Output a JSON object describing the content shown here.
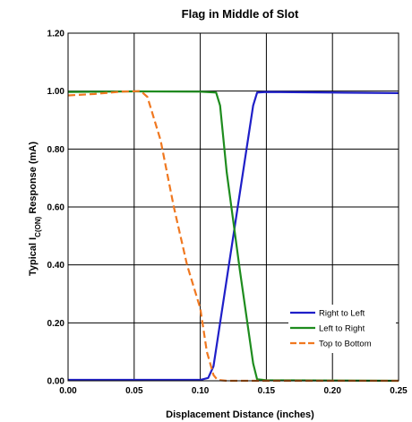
{
  "chart_data": {
    "type": "line",
    "title": "Flag in Middle of Slot",
    "xlabel": "Displacement Distance (inches)",
    "ylabel": {
      "prefix": "Typical I",
      "subscript": "C(ON)",
      "suffix": " Response (mA)"
    },
    "xlim": [
      0,
      0.25
    ],
    "ylim": [
      0,
      1.2
    ],
    "x_ticks": [
      {
        "value": 0.0,
        "label": "0.00"
      },
      {
        "value": 0.05,
        "label": "0.05"
      },
      {
        "value": 0.1,
        "label": "0.10"
      },
      {
        "value": 0.15,
        "label": "0.15"
      },
      {
        "value": 0.2,
        "label": "0.20"
      },
      {
        "value": 0.25,
        "label": "0.25"
      }
    ],
    "y_ticks": [
      {
        "value": 0.0,
        "label": "0.00"
      },
      {
        "value": 0.2,
        "label": "0.20"
      },
      {
        "value": 0.4,
        "label": "0.40"
      },
      {
        "value": 0.6,
        "label": "0.60"
      },
      {
        "value": 0.8,
        "label": "0.80"
      },
      {
        "value": 1.0,
        "label": "1.00"
      },
      {
        "value": 1.2,
        "label": "1.20"
      }
    ],
    "grid": true,
    "legend_position": "bottom-right",
    "series": [
      {
        "name": "Right to Left",
        "color": "#1f1fc8",
        "dash": "solid",
        "points": [
          [
            0.0,
            0.003
          ],
          [
            0.1,
            0.003
          ],
          [
            0.106,
            0.01
          ],
          [
            0.11,
            0.05
          ],
          [
            0.12,
            0.35
          ],
          [
            0.13,
            0.65
          ],
          [
            0.14,
            0.95
          ],
          [
            0.143,
            0.995
          ],
          [
            0.15,
            0.997
          ],
          [
            0.2,
            0.995
          ],
          [
            0.25,
            0.993
          ]
        ]
      },
      {
        "name": "Left to Right",
        "color": "#1e8c1e",
        "dash": "solid",
        "points": [
          [
            0.0,
            0.997
          ],
          [
            0.05,
            0.999
          ],
          [
            0.1,
            0.998
          ],
          [
            0.112,
            0.995
          ],
          [
            0.115,
            0.95
          ],
          [
            0.12,
            0.72
          ],
          [
            0.13,
            0.38
          ],
          [
            0.14,
            0.06
          ],
          [
            0.143,
            0.005
          ],
          [
            0.15,
            0.002
          ],
          [
            0.25,
            0.0
          ]
        ]
      },
      {
        "name": "Top to Bottom",
        "color": "#f07820",
        "dash": "dashed",
        "points": [
          [
            0.0,
            0.985
          ],
          [
            0.02,
            0.99
          ],
          [
            0.04,
            0.998
          ],
          [
            0.055,
            1.0
          ],
          [
            0.06,
            0.98
          ],
          [
            0.07,
            0.83
          ],
          [
            0.08,
            0.6
          ],
          [
            0.09,
            0.4
          ],
          [
            0.1,
            0.25
          ],
          [
            0.105,
            0.1
          ],
          [
            0.11,
            0.02
          ],
          [
            0.113,
            0.003
          ],
          [
            0.12,
            0.0
          ],
          [
            0.15,
            0.0
          ],
          [
            0.25,
            0.0
          ]
        ]
      }
    ]
  }
}
